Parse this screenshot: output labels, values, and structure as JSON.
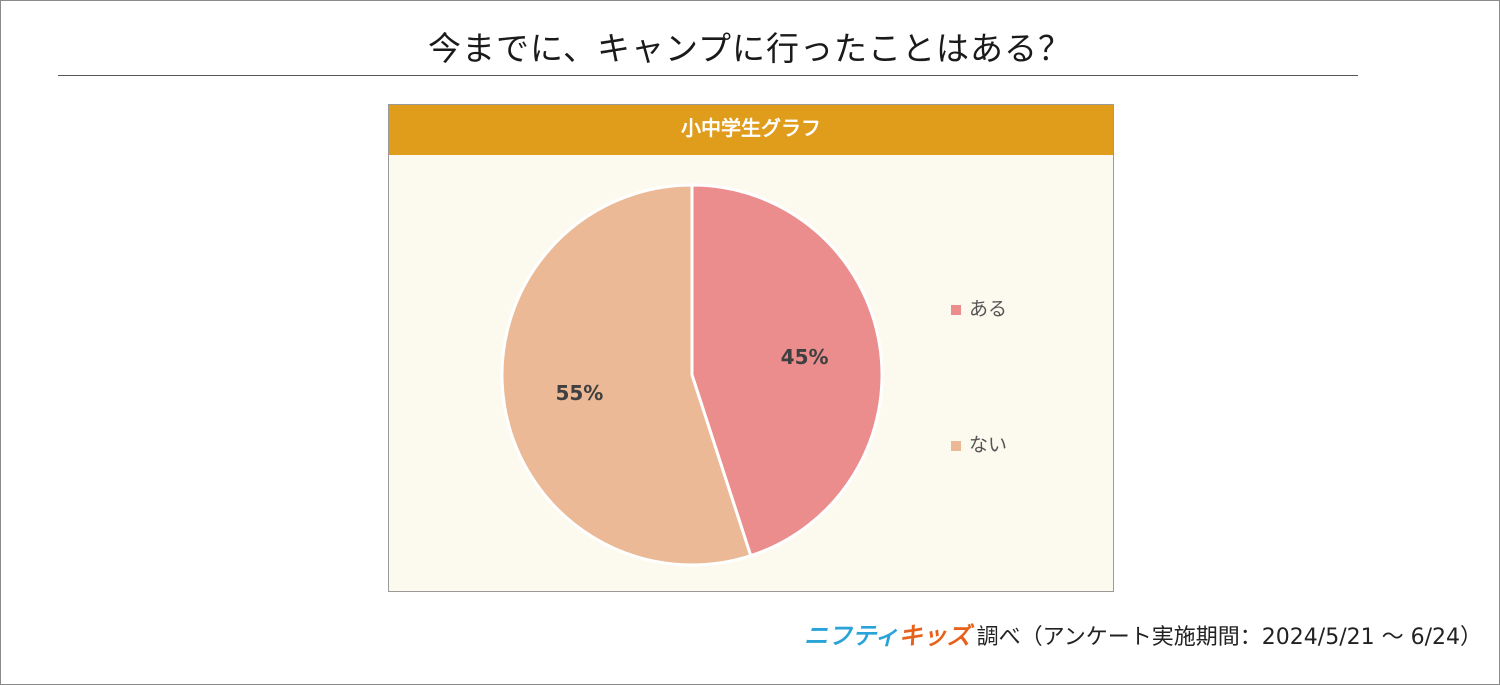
{
  "title": "今までに、キャンプに行ったことはある？",
  "panel": {
    "header": "小中学生グラフ"
  },
  "chart_data": {
    "type": "pie",
    "categories": [
      "ある",
      "ない"
    ],
    "values": [
      45,
      55
    ],
    "value_labels": [
      "45%",
      "55%"
    ],
    "colors": [
      "#eb8d8d",
      "#ebb996"
    ],
    "legend_position": "right",
    "title": "小中学生グラフ"
  },
  "footer": {
    "logo_part1": "ニフティ",
    "logo_part2": "キッズ",
    "text": "調べ（アンケート実施期間：2024/5/21 ～ 6/24）"
  }
}
